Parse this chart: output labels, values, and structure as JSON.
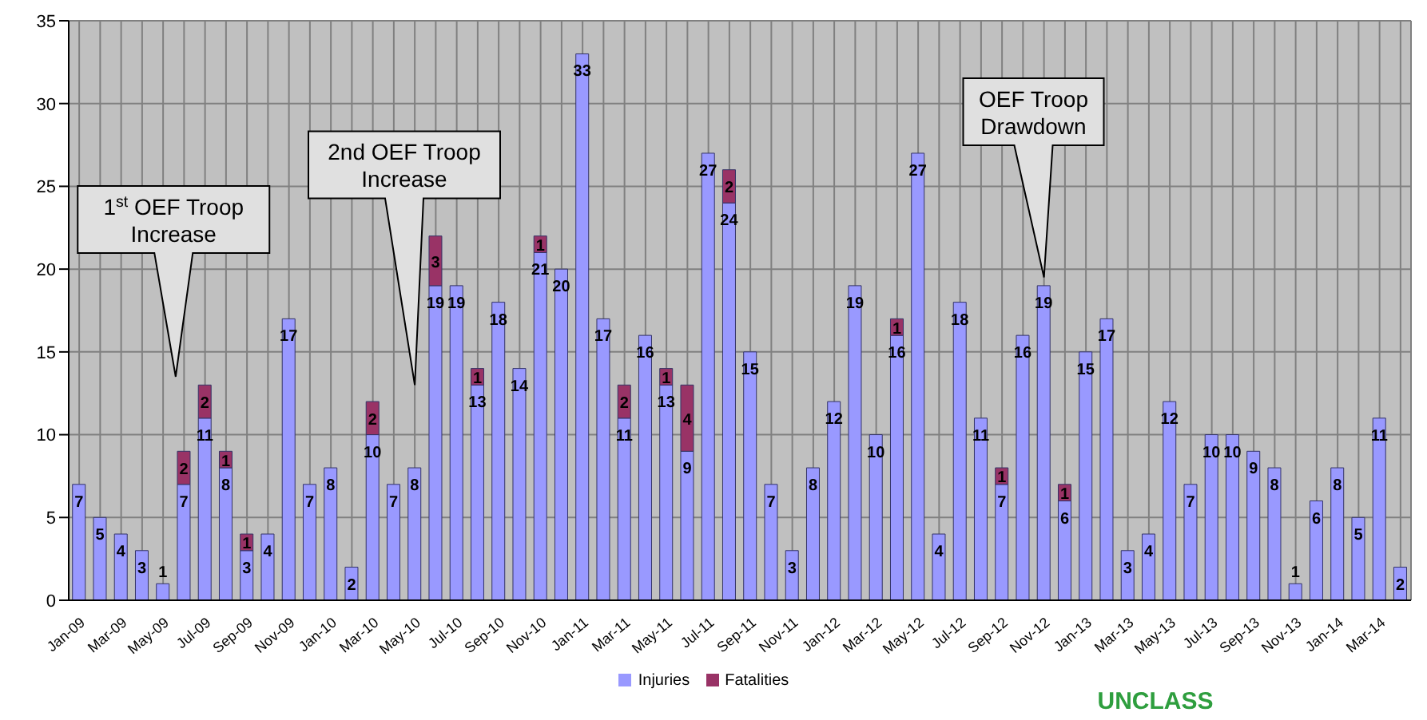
{
  "chart_data": {
    "type": "bar",
    "stacked": true,
    "categories": [
      "Jan-09",
      null,
      "Mar-09",
      null,
      "May-09",
      null,
      "Jul-09",
      null,
      "Sep-09",
      null,
      "Nov-09",
      null,
      "Jan-10",
      null,
      "Mar-10",
      null,
      "May-10",
      null,
      "Jul-10",
      null,
      "Sep-10",
      null,
      "Nov-10",
      null,
      "Jan-11",
      null,
      "Mar-11",
      null,
      "May-11",
      null,
      "Jul-11",
      null,
      "Sep-11",
      null,
      "Nov-11",
      null,
      "Jan-12",
      null,
      "Mar-12",
      null,
      "May-12",
      null,
      "Jul-12",
      null,
      "Sep-12",
      null,
      "Nov-12",
      null,
      "Jan-13",
      null,
      "Mar-13",
      null,
      "May-13",
      null,
      "Jul-13",
      null,
      "Sep-13",
      null,
      "Nov-13",
      null,
      "Jan-14",
      null,
      "Mar-14",
      null
    ],
    "series": [
      {
        "name": "Injuries",
        "color": "#9999ff",
        "values": [
          7,
          5,
          4,
          3,
          1,
          7,
          11,
          8,
          3,
          4,
          17,
          7,
          8,
          2,
          10,
          7,
          8,
          19,
          19,
          13,
          18,
          14,
          21,
          20,
          33,
          17,
          11,
          16,
          13,
          9,
          27,
          24,
          15,
          7,
          3,
          8,
          12,
          19,
          10,
          16,
          27,
          4,
          18,
          11,
          7,
          16,
          19,
          6,
          15,
          17,
          3,
          4,
          12,
          7,
          10,
          10,
          9,
          8,
          1,
          6,
          8,
          5,
          11,
          2
        ]
      },
      {
        "name": "Fatalities",
        "color": "#993366",
        "values": [
          null,
          null,
          null,
          null,
          null,
          2,
          2,
          1,
          1,
          null,
          null,
          null,
          null,
          null,
          2,
          null,
          null,
          3,
          null,
          1,
          null,
          null,
          1,
          null,
          null,
          null,
          2,
          null,
          1,
          4,
          null,
          2,
          null,
          null,
          null,
          null,
          null,
          null,
          null,
          1,
          null,
          null,
          null,
          null,
          1,
          null,
          null,
          1,
          null,
          null,
          null,
          null,
          null,
          null,
          null,
          null,
          null,
          null,
          null,
          null,
          null,
          null,
          null,
          null
        ]
      }
    ],
    "ylim": [
      0,
      35
    ],
    "yticks": [
      0,
      5,
      10,
      15,
      20,
      25,
      30,
      35
    ],
    "grid": true,
    "legend": "bottom",
    "data_labels": true,
    "annotations": [
      "1$^{st}$ OEF Troop Increase",
      "2nd OEF Troop Increase",
      "OEF Troop Drawdown",
      "UNCLASS"
    ]
  }
}
